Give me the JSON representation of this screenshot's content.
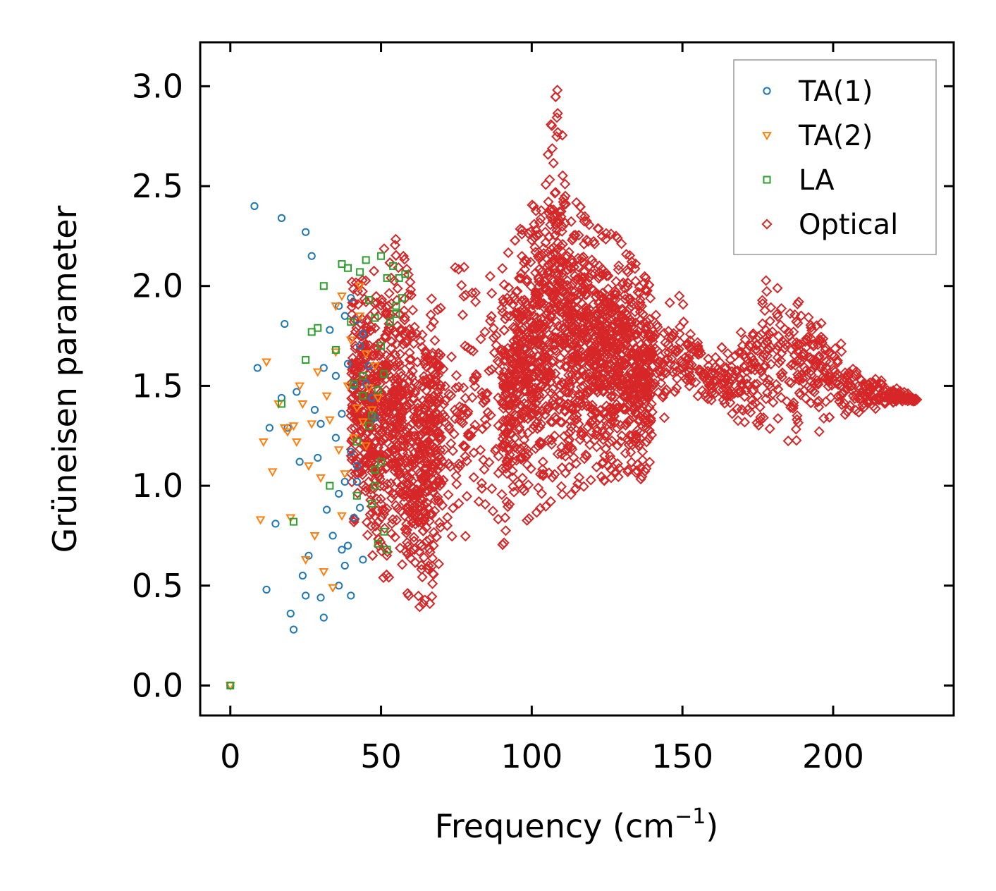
{
  "chart_data": {
    "type": "scatter",
    "title": "",
    "xlabel": "Frequency (cm",
    "xlabel_sup": "−1",
    "xlabel_end": ")",
    "ylabel": "Grüneisen parameter",
    "xlim": [
      -10,
      240
    ],
    "ylim": [
      -0.15,
      3.22
    ],
    "xticks": [
      0,
      50,
      100,
      150,
      200
    ],
    "yticks": [
      0.0,
      0.5,
      1.0,
      1.5,
      2.0,
      2.5,
      3.0
    ],
    "xtick_labels": [
      "0",
      "50",
      "100",
      "150",
      "200"
    ],
    "ytick_labels": [
      "0.0",
      "0.5",
      "1.0",
      "1.5",
      "2.0",
      "2.5",
      "3.0"
    ],
    "legend_position": "top-right",
    "series": [
      {
        "name": "TA(1)",
        "marker": "circle",
        "color": "#1f77b4",
        "x": [
          0,
          8,
          9,
          12,
          13,
          15,
          17,
          17,
          18,
          19,
          20,
          21,
          22,
          23,
          24,
          25,
          25,
          26,
          27,
          28,
          29,
          30,
          30,
          31,
          31,
          32,
          33,
          34,
          35,
          35,
          36,
          36,
          37,
          37,
          38,
          38,
          39,
          39,
          40,
          40,
          41,
          41,
          42,
          42,
          43,
          43,
          44,
          45,
          46,
          47,
          48,
          40,
          38,
          36,
          42,
          44
        ],
        "y": [
          0.0,
          2.4,
          1.59,
          0.48,
          1.29,
          0.81,
          2.34,
          1.44,
          1.81,
          1.29,
          0.36,
          0.28,
          1.47,
          1.12,
          0.55,
          0.45,
          2.27,
          0.65,
          2.15,
          1.38,
          1.14,
          0.44,
          1.31,
          1.59,
          0.34,
          0.88,
          1.78,
          0.75,
          1.55,
          1.24,
          0.96,
          0.5,
          1.36,
          0.68,
          1.85,
          1.02,
          1.61,
          0.7,
          1.94,
          1.17,
          1.5,
          0.84,
          1.83,
          1.02,
          1.7,
          0.89,
          1.76,
          1.51,
          1.6,
          1.44,
          1.34,
          0.45,
          0.6,
          1.9,
          1.1,
          0.63
        ]
      },
      {
        "name": "TA(2)",
        "marker": "triangle-down",
        "color": "#ff7f0e",
        "x": [
          0,
          10,
          11,
          12,
          14,
          16,
          18,
          19,
          20,
          21,
          22,
          23,
          24,
          25,
          26,
          27,
          28,
          29,
          30,
          31,
          32,
          33,
          34,
          35,
          36,
          37,
          38,
          39,
          40,
          41,
          42,
          43,
          44,
          45,
          46,
          47,
          48,
          49,
          37,
          43,
          35,
          45
        ],
        "y": [
          0.0,
          0.83,
          1.22,
          1.62,
          1.07,
          1.41,
          1.29,
          1.27,
          0.84,
          1.3,
          1.22,
          1.5,
          1.41,
          0.63,
          1.1,
          1.31,
          0.75,
          1.57,
          1.04,
          0.57,
          1.45,
          1.33,
          0.49,
          1.67,
          1.18,
          1.95,
          1.06,
          1.5,
          1.73,
          1.24,
          1.39,
          1.85,
          1.32,
          1.66,
          1.49,
          1.38,
          1.6,
          1.44,
          0.85,
          2.0,
          1.9,
          1.2
        ]
      },
      {
        "name": "LA",
        "marker": "square",
        "color": "#2ca02c",
        "x": [
          0,
          17,
          21,
          25,
          27,
          29,
          31,
          33,
          35,
          37,
          39,
          40,
          41,
          42,
          43,
          44,
          45,
          46,
          47,
          47,
          48,
          48,
          49,
          49,
          50,
          50,
          51,
          51,
          52,
          53,
          54,
          55,
          56,
          57,
          58,
          46,
          48,
          50,
          44,
          42,
          52,
          55
        ],
        "y": [
          0.0,
          1.41,
          0.82,
          1.63,
          1.77,
          1.79,
          2.0,
          1.0,
          1.68,
          2.11,
          2.09,
          1.82,
          1.51,
          1.22,
          2.07,
          1.55,
          2.13,
          1.93,
          1.35,
          0.91,
          1.84,
          1.08,
          1.48,
          0.71,
          1.7,
          1.12,
          0.77,
          1.56,
          2.04,
          1.82,
          2.1,
          1.9,
          2.04,
          1.94,
          2.06,
          1.3,
          1.0,
          2.15,
          1.45,
          0.95,
          0.68,
          1.86
        ]
      },
      {
        "name": "Optical",
        "marker": "diamond",
        "color": "#d62728"
      }
    ]
  }
}
